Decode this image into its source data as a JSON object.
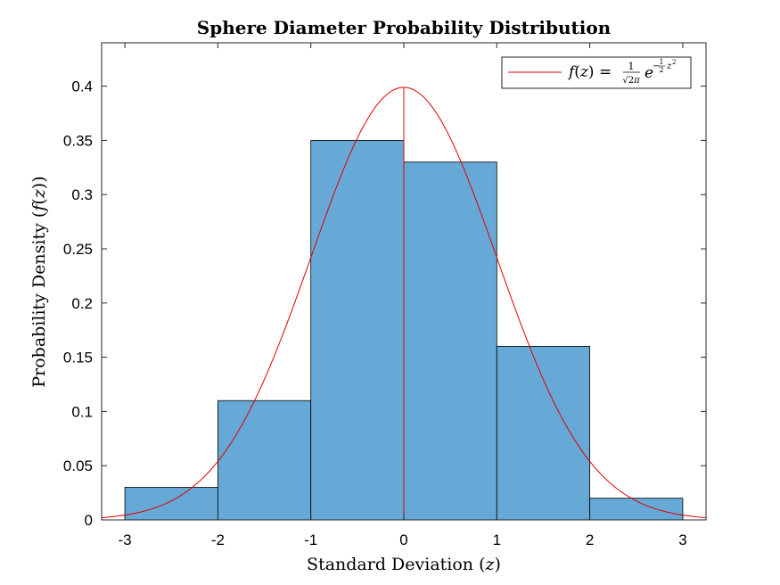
{
  "chart_data": {
    "type": "bar",
    "title": "Sphere Diameter Probability Distribution",
    "xlabel": "Standard Deviation (z)",
    "ylabel": "Probability Density (f(z))",
    "xlim": [
      -3.25,
      3.25
    ],
    "ylim": [
      0,
      0.44
    ],
    "xticks": [
      -3,
      -2,
      -1,
      0,
      1,
      2,
      3
    ],
    "xtick_labels": [
      "-3",
      "-2",
      "-1",
      "0",
      "1",
      "2",
      "3"
    ],
    "yticks": [
      0,
      0.05,
      0.1,
      0.15,
      0.2,
      0.25,
      0.3,
      0.35,
      0.4
    ],
    "ytick_labels": [
      "0",
      "0.05",
      "0.1",
      "0.15",
      "0.2",
      "0.25",
      "0.3",
      "0.35",
      "0.4"
    ],
    "grid": false,
    "legend_position": "top-right",
    "bins": [
      {
        "from": -3,
        "to": -2,
        "value": 0.03
      },
      {
        "from": -2,
        "to": -1,
        "value": 0.11
      },
      {
        "from": -1,
        "to": 0,
        "value": 0.35
      },
      {
        "from": 0,
        "to": 1,
        "value": 0.33
      },
      {
        "from": 1,
        "to": 2,
        "value": 0.16
      },
      {
        "from": 2,
        "to": 3,
        "value": 0.02
      }
    ],
    "curve": {
      "label": "f(z) = (1/√(2π)) e^(−½z²)",
      "function": "standard-normal-pdf"
    },
    "colors": {
      "bar_fill": "#66a9d7",
      "bar_edge": "#000000",
      "curve": "#e00000",
      "axes": "#262626",
      "text": "#000000"
    }
  }
}
